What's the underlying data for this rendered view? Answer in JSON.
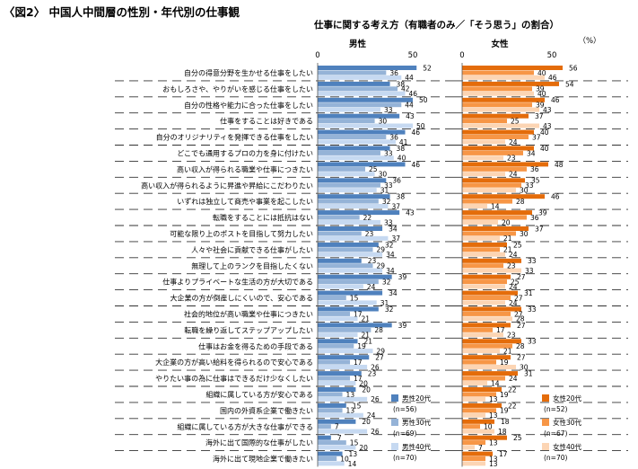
{
  "title": "〈図2〉 中国人中間層の性別・年代別の仕事観",
  "subtitle": "仕事に関する考え方（有職者のみ／「そう思う」の割合）",
  "unit": "（%）",
  "chart_data": {
    "type": "bar",
    "orientation": "horizontal",
    "xlim": [
      0,
      50
    ],
    "ticks": [
      0,
      50
    ],
    "panels": [
      {
        "title": "男性",
        "series": [
          {
            "name": "男性20代",
            "n": "(n=56)",
            "color": "#4f81bd"
          },
          {
            "name": "男性30代",
            "n": "(n=69)",
            "color": "#95b3d7"
          },
          {
            "name": "男性40代",
            "n": "(n=70)",
            "color": "#c6d9f1"
          }
        ]
      },
      {
        "title": "女性",
        "series": [
          {
            "name": "女性20代",
            "n": "(n=52)",
            "color": "#e46c0a"
          },
          {
            "name": "女性30代",
            "n": "(n=67)",
            "color": "#f79646"
          },
          {
            "name": "女性40代",
            "n": "(n=70)",
            "color": "#fcd5b4"
          }
        ]
      }
    ],
    "categories": [
      "自分の得意分野を生かせる仕事をしたい",
      "おもしろさや、やりがいを感じる仕事をしたい",
      "自分の性格や能力に合った仕事をしたい",
      "仕事をすることは好きである",
      "自分のオリジナリティを発揮できる仕事をしたい",
      "どこでも通用するプロの力を身に付けたい",
      "高い収入が得られる職業や仕事につきたい",
      "高い収入が得られるように昇進や昇給にこだわりたい",
      "いずれは独立して商売や事業を起こしたい",
      "転職をすることには抵抗はない",
      "可能な限り上のポストを目指して努力したい",
      "人々や社会に貢献できる仕事がしたい",
      "無理して上のランクを目指したくない",
      "仕事よりプライベートな生活の方が大切である",
      "大企業の方が倒産しにくいので、安心である",
      "社会的地位が高い職業や仕事につきたい",
      "転職を繰り返してステップアップしたい",
      "仕事はお金を得るための手段である",
      "大企業の方が高い給料を得られるので安心である",
      "やりたい事の為に仕事はできるだけ少なくしたい",
      "組織に属している方が安心である",
      "国内の外資系企業で働きたい",
      "組織に属している方が大きな仕事ができる",
      "海外に出て国際的な仕事がしたい",
      "海外に出て現地企業で働きたい"
    ],
    "male_values": [
      [
        52,
        36,
        44
      ],
      [
        38,
        42,
        46
      ],
      [
        50,
        44,
        33
      ],
      [
        43,
        30,
        50
      ],
      [
        46,
        36,
        41
      ],
      [
        38,
        33,
        40
      ],
      [
        46,
        25,
        30
      ],
      [
        36,
        33,
        31
      ],
      [
        38,
        32,
        37
      ],
      [
        43,
        22,
        33
      ],
      [
        34,
        23,
        37
      ],
      [
        32,
        29,
        34
      ],
      [
        23,
        29,
        34
      ],
      [
        39,
        32,
        24
      ],
      [
        34,
        15,
        31
      ],
      [
        32,
        17,
        21
      ],
      [
        39,
        28,
        21
      ],
      [
        21,
        19,
        29
      ],
      [
        27,
        17,
        26
      ],
      [
        23,
        17,
        20
      ],
      [
        20,
        13,
        26
      ],
      [
        15,
        13,
        24
      ],
      [
        20,
        7,
        26
      ],
      [
        7,
        15,
        20
      ],
      [
        13,
        10,
        14
      ]
    ],
    "female_values": [
      [
        56,
        40,
        46
      ],
      [
        54,
        39,
        40
      ],
      [
        46,
        39,
        43
      ],
      [
        37,
        25,
        43
      ],
      [
        40,
        37,
        24
      ],
      [
        40,
        34,
        23
      ],
      [
        48,
        36,
        24
      ],
      [
        35,
        33,
        30
      ],
      [
        46,
        28,
        14
      ],
      [
        39,
        36,
        20
      ],
      [
        37,
        30,
        21
      ],
      [
        25,
        21,
        24
      ],
      [
        33,
        23,
        33
      ],
      [
        27,
        25,
        24
      ],
      [
        31,
        27,
        24
      ],
      [
        33,
        27,
        28
      ],
      [
        27,
        17,
        23
      ],
      [
        33,
        28,
        21
      ],
      [
        27,
        19,
        30
      ],
      [
        31,
        24,
        14
      ],
      [
        22,
        19,
        13
      ],
      [
        22,
        19,
        13
      ],
      [
        18,
        10,
        18
      ],
      [
        25,
        13,
        7
      ],
      [
        17,
        13,
        13
      ]
    ]
  }
}
